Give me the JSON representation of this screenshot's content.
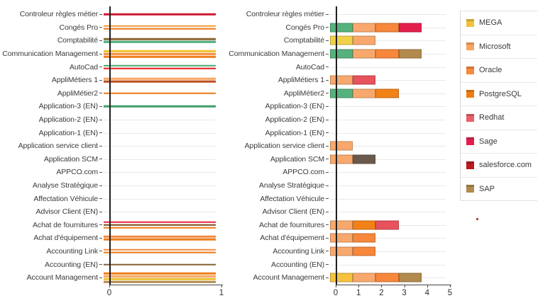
{
  "legend": {
    "items": [
      {
        "label": "MEGA",
        "color": "#f0c23c"
      },
      {
        "label": "Microsoft",
        "color": "#f7a65f"
      },
      {
        "label": "Oracle",
        "color": "#f68b3c"
      },
      {
        "label": "PostgreSQL",
        "color": "#f07d13"
      },
      {
        "label": "Redhat",
        "color": "#e8606a"
      },
      {
        "label": "Sage",
        "color": "#e41e4c"
      },
      {
        "label": "salesforce.com",
        "color": "#bb1b1e"
      },
      {
        "label": "SAP",
        "color": "#b28a4d"
      }
    ]
  },
  "chart_data": [
    {
      "type": "bar",
      "orientation": "horizontal",
      "title": "",
      "xlabel": "",
      "ylabel": "",
      "xlim": [
        0,
        1
      ],
      "xticks": [
        0,
        1
      ],
      "grid": true,
      "note": "each thin line is one technology with value 1",
      "rows": [
        {
          "category": "Controleur règles métier",
          "lines": [
            {
              "value": 1,
              "color": "#cc1830"
            }
          ]
        },
        {
          "category": "Congés Pro",
          "lines": [
            {
              "value": 1,
              "color": "#f59a3c"
            },
            {
              "value": 1,
              "color": "#f07d1a"
            }
          ]
        },
        {
          "category": "Comptabilité",
          "lines": [
            {
              "value": 1,
              "color": "#8a6433"
            },
            {
              "value": 1,
              "color": "#4cae7c"
            }
          ]
        },
        {
          "category": "Communication Management",
          "lines": [
            {
              "value": 1,
              "color": "#eec12e"
            },
            {
              "value": 1,
              "color": "#f68b3c"
            },
            {
              "value": 1,
              "color": "#f07d1a"
            }
          ]
        },
        {
          "category": "AutoCad",
          "lines": [
            {
              "value": 1,
              "color": "#45a96d"
            },
            {
              "value": 1,
              "color": "#e52020"
            }
          ]
        },
        {
          "category": "AppliMétiers 1",
          "lines": [
            {
              "value": 1,
              "color": "#f7a65f"
            },
            {
              "value": 1,
              "color": "#bf4e1d"
            }
          ]
        },
        {
          "category": "AppliMétier2",
          "lines": [
            {
              "value": 1,
              "color": "#f07d1a"
            }
          ]
        },
        {
          "category": "Application-3 (EN)",
          "lines": [
            {
              "value": 1,
              "color": "#3f9e68"
            }
          ]
        },
        {
          "category": "Application-2 (EN)",
          "lines": []
        },
        {
          "category": "Application-1 (EN)",
          "lines": []
        },
        {
          "category": "Application service client",
          "lines": []
        },
        {
          "category": "Application SCM",
          "lines": []
        },
        {
          "category": "APPCO.com",
          "lines": []
        },
        {
          "category": "Analyse Stratégique",
          "lines": []
        },
        {
          "category": "Affectation Véhicule",
          "lines": []
        },
        {
          "category": "Advisor Client (EN)",
          "lines": []
        },
        {
          "category": "Achat de fournitures",
          "lines": [
            {
              "value": 1,
              "color": "#e8253c"
            },
            {
              "value": 1,
              "color": "#7c4b1e"
            },
            {
              "value": 1,
              "color": "#f07d1a"
            }
          ]
        },
        {
          "category": "Achat d'équipement",
          "lines": [
            {
              "value": 1,
              "color": "#f68b3c"
            },
            {
              "value": 1,
              "color": "#f07d1a"
            }
          ]
        },
        {
          "category": "Accounting Link",
          "lines": [
            {
              "value": 1,
              "color": "#f68b3c"
            },
            {
              "value": 1,
              "color": "#f07d1a"
            }
          ]
        },
        {
          "category": "Accounting (EN)",
          "lines": [
            {
              "value": 1,
              "color": "#8a6433"
            }
          ]
        },
        {
          "category": "Account Management",
          "lines": [
            {
              "value": 1,
              "color": "#f07d1a"
            },
            {
              "value": 1,
              "color": "#f7a65f"
            },
            {
              "value": 1,
              "color": "#eec12e"
            },
            {
              "value": 1,
              "color": "#b28a4d"
            }
          ]
        }
      ]
    },
    {
      "type": "stacked-bar",
      "orientation": "horizontal",
      "title": "",
      "xlabel": "",
      "ylabel": "",
      "xlim": [
        0,
        5
      ],
      "xticks": [
        0,
        1,
        2,
        3,
        4,
        5
      ],
      "grid": true,
      "note": "each segment = 1 unit; series per legend, plus two series not shown in visible legend (green, dark taupe)",
      "rows": [
        {
          "category": "Controleur règles métier",
          "segments": []
        },
        {
          "category": "Congés Pro",
          "segments": [
            {
              "series": "",
              "value": 1,
              "color": "#56b27c"
            },
            {
              "series": "Microsoft",
              "value": 1,
              "color": "#f9a86d"
            },
            {
              "series": "Oracle",
              "value": 1,
              "color": "#f6873b"
            },
            {
              "series": "Sage",
              "value": 1,
              "color": "#e41e4c"
            }
          ]
        },
        {
          "category": "Comptabilité",
          "segments": [
            {
              "series": "MEGA",
              "value": 1,
              "color": "#f0d24a"
            },
            {
              "series": "Microsoft",
              "value": 1,
              "color": "#f9a86d"
            }
          ]
        },
        {
          "category": "Communication Management",
          "segments": [
            {
              "series": "",
              "value": 1,
              "color": "#56b27c"
            },
            {
              "series": "Microsoft",
              "value": 1,
              "color": "#f9a86d"
            },
            {
              "series": "Oracle",
              "value": 1,
              "color": "#f6873b"
            },
            {
              "series": "SAP",
              "value": 1,
              "color": "#b28a4d"
            }
          ]
        },
        {
          "category": "AutoCad",
          "segments": []
        },
        {
          "category": "AppliMétiers 1",
          "segments": [
            {
              "series": "Microsoft",
              "value": 1,
              "color": "#f9a86d"
            },
            {
              "series": "Redhat",
              "value": 1,
              "color": "#e8525c"
            }
          ]
        },
        {
          "category": "AppliMétier2",
          "segments": [
            {
              "series": "",
              "value": 1,
              "color": "#56b27c"
            },
            {
              "series": "Microsoft",
              "value": 1,
              "color": "#f9a86d"
            },
            {
              "series": "PostgreSQL",
              "value": 1,
              "color": "#f28118"
            }
          ]
        },
        {
          "category": "Application-3 (EN)",
          "segments": []
        },
        {
          "category": "Application-2 (EN)",
          "segments": []
        },
        {
          "category": "Application-1 (EN)",
          "segments": []
        },
        {
          "category": "Application service client",
          "segments": [
            {
              "series": "Microsoft",
              "value": 1,
              "color": "#f9a86d"
            }
          ]
        },
        {
          "category": "Application SCM",
          "segments": [
            {
              "series": "Microsoft",
              "value": 1,
              "color": "#f9a86d"
            },
            {
              "series": "",
              "value": 1,
              "color": "#6b5a4c"
            }
          ]
        },
        {
          "category": "APPCO.com",
          "segments": []
        },
        {
          "category": "Analyse Stratégique",
          "segments": []
        },
        {
          "category": "Affectation Véhicule",
          "segments": []
        },
        {
          "category": "Advisor Client (EN)",
          "segments": []
        },
        {
          "category": "Achat de fournitures",
          "segments": [
            {
              "series": "Microsoft",
              "value": 1,
              "color": "#f9a86d"
            },
            {
              "series": "PostgreSQL",
              "value": 1,
              "color": "#f28118"
            },
            {
              "series": "Redhat",
              "value": 1,
              "color": "#e8525c"
            }
          ]
        },
        {
          "category": "Achat d'équipement",
          "segments": [
            {
              "series": "Microsoft",
              "value": 1,
              "color": "#f9a86d"
            },
            {
              "series": "Oracle",
              "value": 1,
              "color": "#f6873b"
            }
          ]
        },
        {
          "category": "Accounting Link",
          "segments": [
            {
              "series": "Microsoft",
              "value": 1,
              "color": "#f9a86d"
            },
            {
              "series": "Oracle",
              "value": 1,
              "color": "#f6873b"
            }
          ]
        },
        {
          "category": "Accounting (EN)",
          "segments": []
        },
        {
          "category": "Account Management",
          "segments": [
            {
              "series": "MEGA",
              "value": 1,
              "color": "#f5c33e"
            },
            {
              "series": "Microsoft",
              "value": 1,
              "color": "#f9a86d"
            },
            {
              "series": "Oracle",
              "value": 1,
              "color": "#f6873b"
            },
            {
              "series": "SAP",
              "value": 1,
              "color": "#b28a4d"
            }
          ]
        }
      ]
    }
  ]
}
